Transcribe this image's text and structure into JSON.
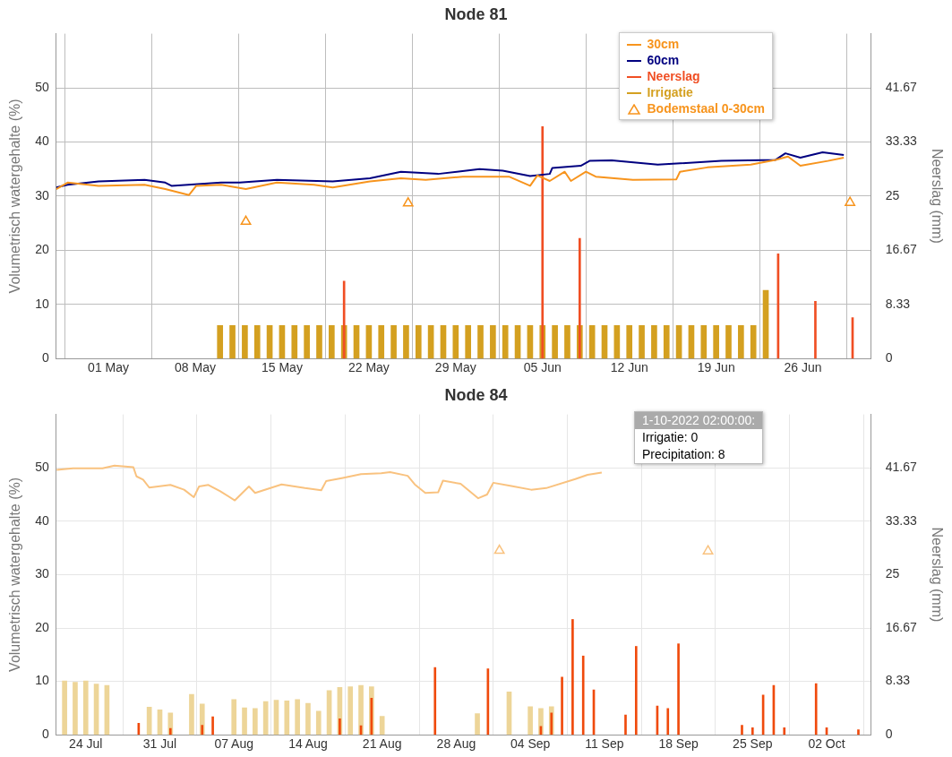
{
  "chart_data": [
    {
      "type": "line",
      "title": "Node 81",
      "ylabel": "Volumetrisch watergehalte (%)",
      "y2label": "Neerslag (mm)",
      "xlim": [
        "2022-04-26T19:00",
        "2022-07-01T12:00"
      ],
      "xticks": [
        {
          "value": "2022-05-01",
          "label": "01 May"
        },
        {
          "value": "2022-05-08",
          "label": "08 May"
        },
        {
          "value": "2022-05-15",
          "label": "15 May"
        },
        {
          "value": "2022-05-22",
          "label": "22 May"
        },
        {
          "value": "2022-05-29",
          "label": "29 May"
        },
        {
          "value": "2022-06-05",
          "label": "05 Jun"
        },
        {
          "value": "2022-06-12",
          "label": "12 Jun"
        },
        {
          "value": "2022-06-19",
          "label": "19 Jun"
        },
        {
          "value": "2022-06-26",
          "label": "26 Jun"
        }
      ],
      "ylim": [
        0,
        60
      ],
      "yticks": [
        0,
        10,
        20,
        30,
        40,
        50
      ],
      "y2lim": [
        0,
        50
      ],
      "y2ticks": [
        0,
        8.33,
        16.67,
        25,
        33.33,
        41.67
      ],
      "grid": true,
      "legend": "top right",
      "series": [
        {
          "name": "30cm",
          "color": "#f7941d",
          "marker": "none",
          "x": [
            "2022-04-26T19:00",
            "2022-04-27T17:00",
            "2022-04-30T05:00",
            "2022-05-03T22:00",
            "2022-05-05T14:00",
            "2022-05-07T12:00",
            "2022-05-08T02:00",
            "2022-05-10T02:00",
            "2022-05-12T02:00",
            "2022-05-14T14:00",
            "2022-05-17T14:00",
            "2022-05-19T02:00",
            "2022-05-22T02:00",
            "2022-05-24T14:00",
            "2022-05-26T14:00",
            "2022-05-29T14:00",
            "2022-06-02T07:00",
            "2022-06-04T00:00",
            "2022-06-04T14:00",
            "2022-06-05T14:00",
            "2022-06-06T19:00",
            "2022-06-07T07:00",
            "2022-06-08T12:00",
            "2022-06-09T07:00",
            "2022-06-12T07:00",
            "2022-06-15T19:00",
            "2022-06-16T02:00",
            "2022-06-18T07:00",
            "2022-06-21T19:00",
            "2022-06-23T19:00",
            "2022-06-24T19:00",
            "2022-06-25T19:00",
            "2022-06-28T00:00",
            "2022-06-29T07:00"
          ],
          "values": [
            31.3,
            32.5,
            31.9,
            32.1,
            31.3,
            30.2,
            31.9,
            32.1,
            31.3,
            32.5,
            32.1,
            31.6,
            32.7,
            33.3,
            33.0,
            33.6,
            33.6,
            31.9,
            33.8,
            32.8,
            34.5,
            32.8,
            34.5,
            33.6,
            33.0,
            33.1,
            34.5,
            35.3,
            35.8,
            36.7,
            37.3,
            35.6,
            36.5,
            37.1
          ]
        },
        {
          "name": "60cm",
          "color": "#000080",
          "marker": "none",
          "x": [
            "2022-04-26T19:00",
            "2022-04-27T17:00",
            "2022-04-30T05:00",
            "2022-05-03T22:00",
            "2022-05-05T14:00",
            "2022-05-06T02:00",
            "2022-05-10T02:00",
            "2022-05-11T14:00",
            "2022-05-14T14:00",
            "2022-05-19T02:00",
            "2022-05-22T02:00",
            "2022-05-24T14:00",
            "2022-05-27T14:00",
            "2022-05-30T22:00",
            "2022-06-01T19:00",
            "2022-06-04T00:00",
            "2022-06-05T14:00",
            "2022-06-05T19:00",
            "2022-06-08T02:00",
            "2022-06-08T19:00",
            "2022-06-10T14:00",
            "2022-06-14T07:00",
            "2022-06-19T10:00",
            "2022-06-23T19:00",
            "2022-06-24T14:00",
            "2022-06-25T19:00",
            "2022-06-27T14:00",
            "2022-06-29T07:00"
          ],
          "values": [
            31.6,
            32.1,
            32.7,
            33.0,
            32.5,
            31.9,
            32.5,
            32.5,
            33.0,
            32.7,
            33.3,
            34.5,
            34.1,
            35.0,
            34.7,
            33.7,
            34.1,
            35.2,
            35.6,
            36.5,
            36.6,
            35.8,
            36.5,
            36.7,
            37.9,
            37.1,
            38.1,
            37.6
          ]
        },
        {
          "name": "Neerslag",
          "type": "bar",
          "axis": "y2",
          "color": "#f04e23",
          "x": [
            "2022-05-20",
            "2022-06-05",
            "2022-06-08",
            "2022-06-24",
            "2022-06-27",
            "2022-06-30"
          ],
          "values": [
            11.9,
            35.7,
            18.5,
            16.1,
            8.8,
            6.3
          ]
        },
        {
          "name": "Irrigatie",
          "type": "bar",
          "axis": "y2",
          "color": "#d4a020",
          "x": [
            "2022-05-10",
            "2022-05-11",
            "2022-05-12",
            "2022-05-13",
            "2022-05-14",
            "2022-05-15",
            "2022-05-16",
            "2022-05-17",
            "2022-05-18",
            "2022-05-19",
            "2022-05-20",
            "2022-05-21",
            "2022-05-22",
            "2022-05-23",
            "2022-05-24",
            "2022-05-25",
            "2022-05-26",
            "2022-05-27",
            "2022-05-28",
            "2022-05-29",
            "2022-05-30",
            "2022-05-31",
            "2022-06-01",
            "2022-06-02",
            "2022-06-03",
            "2022-06-04",
            "2022-06-05",
            "2022-06-06",
            "2022-06-07",
            "2022-06-08",
            "2022-06-09",
            "2022-06-10",
            "2022-06-11",
            "2022-06-12",
            "2022-06-13",
            "2022-06-14",
            "2022-06-15",
            "2022-06-16",
            "2022-06-17",
            "2022-06-18",
            "2022-06-19",
            "2022-06-20",
            "2022-06-21",
            "2022-06-22",
            "2022-06-23"
          ],
          "values": [
            5.1,
            5.1,
            5.1,
            5.1,
            5.1,
            5.1,
            5.1,
            5.1,
            5.1,
            5.1,
            5.1,
            5.1,
            5.1,
            5.1,
            5.1,
            5.1,
            5.1,
            5.1,
            5.1,
            5.1,
            5.1,
            5.1,
            5.1,
            5.1,
            5.1,
            5.1,
            5.1,
            5.1,
            5.1,
            5.1,
            5.1,
            5.1,
            5.1,
            5.1,
            5.1,
            5.1,
            5.1,
            5.1,
            5.1,
            5.1,
            5.1,
            5.1,
            5.1,
            5.1,
            10.5
          ]
        },
        {
          "name": "Bodemstaal 0-30cm",
          "type": "scatter",
          "marker": "triangle",
          "color": "#f7941d",
          "x": [
            "2022-05-12T02:00",
            "2022-05-25T04:00",
            "2022-06-29T19:00"
          ],
          "values": [
            25.3,
            28.7,
            28.8
          ]
        }
      ]
    },
    {
      "type": "line",
      "title": "Node 84",
      "ylabel": "Volumetrisch watergehalte (%)",
      "y2label": "Neerslag (mm)",
      "xlim": [
        "2022-07-21T05:00",
        "2022-10-06T05:00"
      ],
      "xticks": [
        {
          "value": "2022-07-24",
          "label": "24 Jul"
        },
        {
          "value": "2022-07-31",
          "label": "31 Jul"
        },
        {
          "value": "2022-08-07",
          "label": "07 Aug"
        },
        {
          "value": "2022-08-14",
          "label": "14 Aug"
        },
        {
          "value": "2022-08-21",
          "label": "21 Aug"
        },
        {
          "value": "2022-08-28",
          "label": "28 Aug"
        },
        {
          "value": "2022-09-04",
          "label": "04 Sep"
        },
        {
          "value": "2022-09-11",
          "label": "11 Sep"
        },
        {
          "value": "2022-09-18",
          "label": "18 Sep"
        },
        {
          "value": "2022-09-25",
          "label": "25 Sep"
        },
        {
          "value": "2022-10-02",
          "label": "02 Oct"
        }
      ],
      "ylim": [
        0,
        60
      ],
      "yticks": [
        0,
        10,
        20,
        30,
        40,
        50
      ],
      "y2lim": [
        0,
        50
      ],
      "y2ticks": [
        0,
        8.33,
        16.67,
        25,
        33.33,
        41.67
      ],
      "grid": true,
      "annotations": [
        "1-10-2022 02:00:00:",
        "Irrigatie: 0",
        "Precipitation: 8"
      ],
      "series": [
        {
          "color": "#f9c27f",
          "marker": "none",
          "x": [
            "2022-07-21T06:00",
            "2022-07-22T19:00",
            "2022-07-25T14:00",
            "2022-07-26T17:00",
            "2022-07-28T12:00",
            "2022-07-28T19:00",
            "2022-07-29T10:00",
            "2022-07-30T00:00",
            "2022-08-01T00:00",
            "2022-08-02T07:00",
            "2022-08-03T05:00",
            "2022-08-03T17:00",
            "2022-08-04T14:00",
            "2022-08-05T17:00",
            "2022-08-07T02:00",
            "2022-08-08T10:00",
            "2022-08-09T00:00",
            "2022-08-11T12:00",
            "2022-08-13T17:00",
            "2022-08-15T06:00",
            "2022-08-15T17:00",
            "2022-08-17T07:00",
            "2022-08-19T00:00",
            "2022-08-20T22:00",
            "2022-08-21T18:00",
            "2022-08-23T10:00",
            "2022-08-24T02:00",
            "2022-08-25T02:00",
            "2022-08-26T07:00",
            "2022-08-26T18:00",
            "2022-08-28T10:00",
            "2022-08-30T02:00",
            "2022-08-30T22:00",
            "2022-08-31T12:00",
            "2022-09-02T05:00",
            "2022-09-04T02:00",
            "2022-09-05T12:00",
            "2022-09-08T06:00",
            "2022-09-09T10:00",
            "2022-09-10T18:00"
          ],
          "values": [
            49.6,
            49.9,
            49.9,
            50.4,
            50.1,
            48.4,
            47.8,
            46.3,
            46.8,
            45.9,
            44.5,
            46.5,
            46.8,
            45.6,
            43.9,
            46.5,
            45.3,
            46.9,
            46.2,
            45.8,
            47.5,
            48.1,
            48.8,
            49.0,
            49.2,
            48.5,
            46.9,
            45.3,
            45.4,
            47.6,
            47.0,
            44.3,
            45.0,
            47.2,
            46.6,
            45.9,
            46.2,
            47.9,
            48.7,
            49.1
          ]
        },
        {
          "type": "bar",
          "axis": "y2",
          "color": "#f04a0c",
          "x": [
            "2022-07-29",
            "2022-08-01",
            "2022-08-04",
            "2022-08-05",
            "2022-08-17",
            "2022-08-19",
            "2022-08-20",
            "2022-08-26",
            "2022-08-31",
            "2022-09-05",
            "2022-09-06",
            "2022-09-07",
            "2022-09-08",
            "2022-09-09",
            "2022-09-10",
            "2022-09-13",
            "2022-09-14",
            "2022-09-16",
            "2022-09-17",
            "2022-09-18",
            "2022-09-24",
            "2022-09-25",
            "2022-09-26",
            "2022-09-27",
            "2022-09-28",
            "2022-10-01",
            "2022-10-02",
            "2022-10-05"
          ],
          "values": [
            1.8,
            1.0,
            1.5,
            2.8,
            2.5,
            1.4,
            5.7,
            10.5,
            10.3,
            1.3,
            3.4,
            9.0,
            18.0,
            12.3,
            7.0,
            3.1,
            13.8,
            4.5,
            4.1,
            14.2,
            1.5,
            1.1,
            6.2,
            7.7,
            1.1,
            8,
            1.1,
            0.8
          ]
        },
        {
          "type": "bar",
          "axis": "y2",
          "color": "#edd598",
          "x": [
            "2022-07-22",
            "2022-07-23",
            "2022-07-24",
            "2022-07-25",
            "2022-07-26",
            "2022-07-30",
            "2022-07-31",
            "2022-08-01",
            "2022-08-03",
            "2022-08-04",
            "2022-08-07",
            "2022-08-08",
            "2022-08-09",
            "2022-08-10",
            "2022-08-11",
            "2022-08-12",
            "2022-08-13",
            "2022-08-14",
            "2022-08-15",
            "2022-08-16",
            "2022-08-17",
            "2022-08-18",
            "2022-08-19",
            "2022-08-20",
            "2022-08-21",
            "2022-08-30",
            "2022-09-02",
            "2022-09-04",
            "2022-09-05",
            "2022-09-06"
          ],
          "values": [
            8.4,
            8.2,
            8.4,
            7.9,
            7.7,
            4.3,
            3.9,
            3.4,
            6.3,
            4.8,
            5.5,
            4.2,
            4.1,
            5.2,
            5.4,
            5.3,
            5.5,
            4.9,
            3.7,
            6.9,
            7.4,
            7.5,
            7.7,
            7.5,
            2.9,
            3.3,
            6.7,
            4.4,
            4.1,
            4.4
          ]
        },
        {
          "type": "scatter",
          "marker": "triangle",
          "color": "#f9c27f",
          "x": [
            "2022-09-01T02:00",
            "2022-09-20T19:00"
          ],
          "values": [
            34.5,
            34.4
          ]
        }
      ]
    }
  ]
}
